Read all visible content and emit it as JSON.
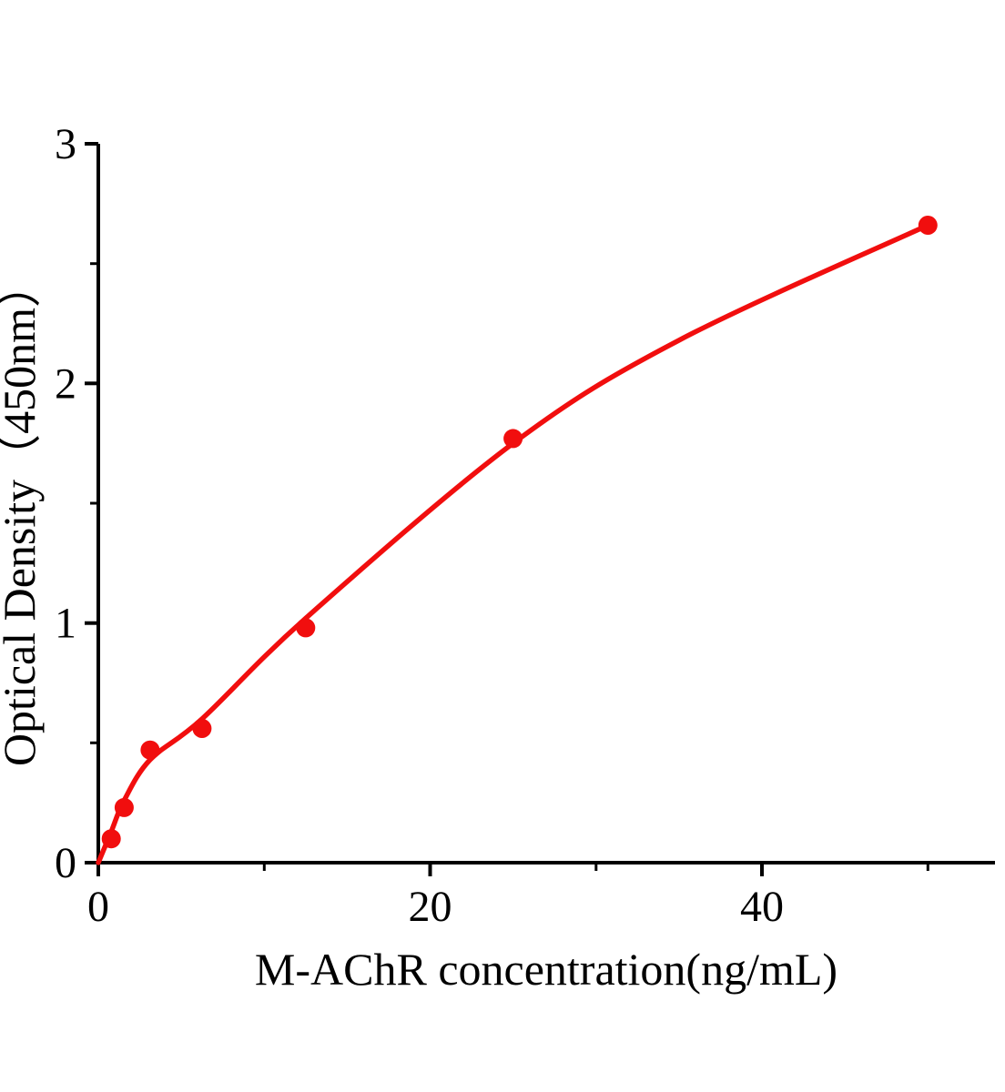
{
  "chart_data": {
    "type": "scatter",
    "title": "",
    "xlabel": "M-AChR concentration(ng/mL)",
    "ylabel": "Optical Density（450nm）",
    "xlim": [
      0,
      54
    ],
    "ylim": [
      0,
      3
    ],
    "grid": false,
    "legend": "none",
    "x_axis": {
      "major_ticks": [
        0,
        20,
        40
      ],
      "minor_ticks": [
        10,
        30,
        50
      ],
      "major_tick_labels": [
        "0",
        "20",
        "40"
      ]
    },
    "y_axis": {
      "major_ticks": [
        0,
        1,
        2,
        3
      ],
      "minor_ticks": [
        0.5,
        1.5,
        2.5
      ],
      "major_tick_labels": [
        "0",
        "1",
        "2",
        "3"
      ]
    },
    "series": [
      {
        "marker": "circle",
        "points": [
          {
            "x": 0.78,
            "y": 0.1
          },
          {
            "x": 1.56,
            "y": 0.23
          },
          {
            "x": 3.12,
            "y": 0.47
          },
          {
            "x": 6.25,
            "y": 0.56
          },
          {
            "x": 12.5,
            "y": 0.98
          },
          {
            "x": 25,
            "y": 1.77
          },
          {
            "x": 50,
            "y": 2.66
          }
        ],
        "fit_curve": [
          [
            0,
            0
          ],
          [
            0.78,
            0.13
          ],
          [
            1.56,
            0.26
          ],
          [
            3.12,
            0.43
          ],
          [
            6.25,
            0.6
          ],
          [
            12.5,
            1.02
          ],
          [
            25,
            1.75
          ],
          [
            35,
            2.18
          ],
          [
            50,
            2.66
          ]
        ]
      }
    ],
    "colors": {
      "series": "#f10e0e",
      "axis": "#000000",
      "background": "#ffffff"
    }
  }
}
